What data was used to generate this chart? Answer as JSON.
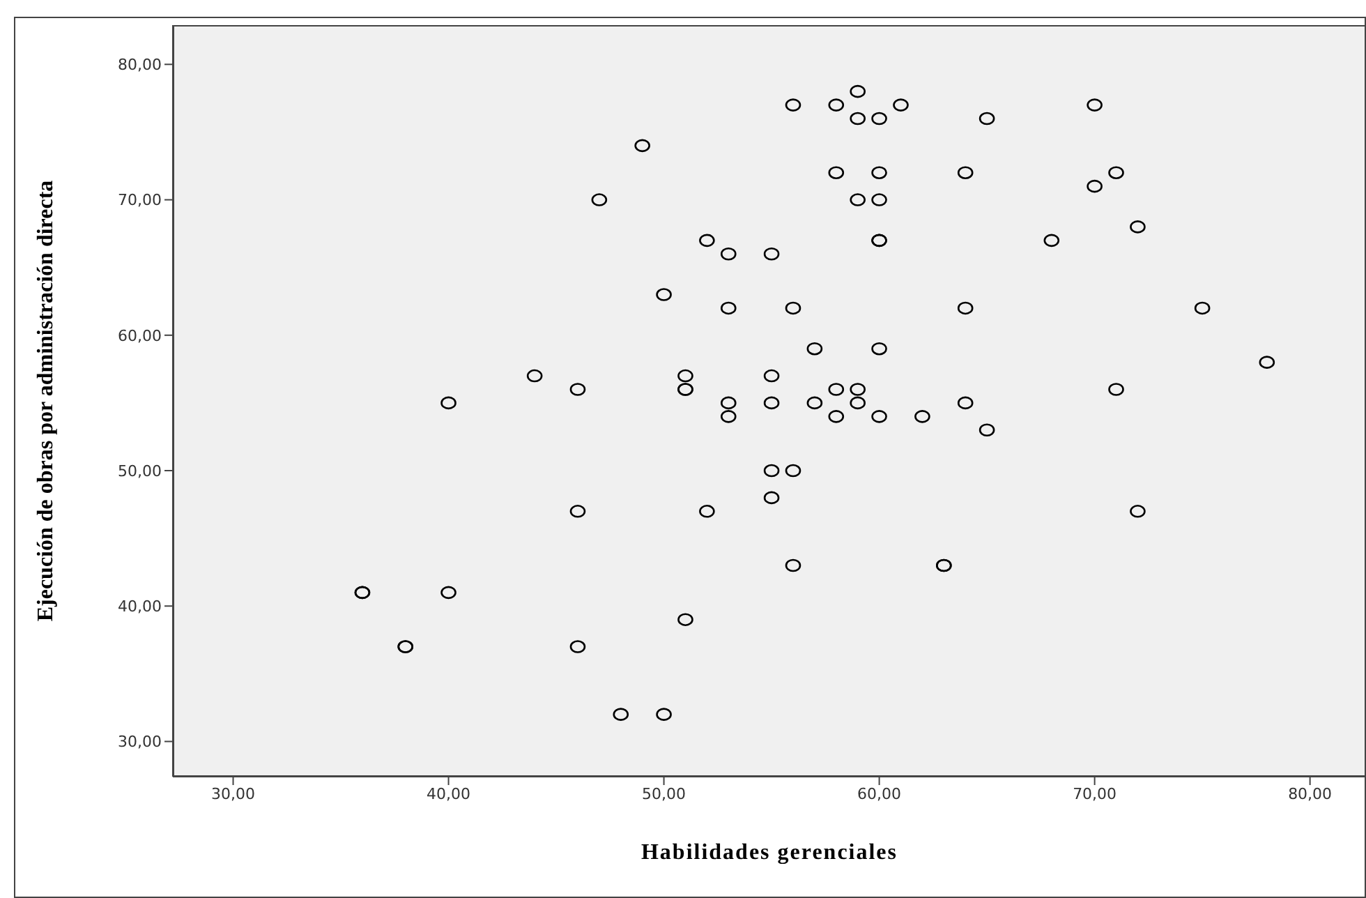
{
  "chart_data": {
    "type": "scatter",
    "xlabel": "Habilidades gerenciales",
    "ylabel": "Ejecución de obras por administración directa",
    "xlim": [
      27.2,
      82.6
    ],
    "ylim": [
      27.4,
      82.9
    ],
    "xticks": [
      {
        "value": 30,
        "label": "30,00"
      },
      {
        "value": 40,
        "label": "40,00"
      },
      {
        "value": 50,
        "label": "50,00"
      },
      {
        "value": 60,
        "label": "60,00"
      },
      {
        "value": 70,
        "label": "70,00"
      },
      {
        "value": 80,
        "label": "80,00"
      }
    ],
    "yticks": [
      {
        "value": 30,
        "label": "30,00"
      },
      {
        "value": 40,
        "label": "40,00"
      },
      {
        "value": 50,
        "label": "50,00"
      },
      {
        "value": 60,
        "label": "60,00"
      },
      {
        "value": 70,
        "label": "70,00"
      },
      {
        "value": 80,
        "label": "80,00"
      }
    ],
    "grid": false,
    "marker": "circle",
    "series": [
      {
        "color": "#000000",
        "x": [
          59,
          56,
          58,
          61,
          70,
          59,
          60,
          65,
          49,
          58,
          60,
          64,
          71,
          70,
          47,
          59,
          60,
          72,
          52,
          60,
          60,
          68,
          53,
          55,
          50,
          53,
          56,
          64,
          75,
          57,
          60,
          78,
          44,
          51,
          55,
          46,
          51,
          51,
          58,
          59,
          71,
          40,
          53,
          55,
          57,
          59,
          64,
          53,
          58,
          60,
          62,
          65,
          55,
          56,
          55,
          46,
          52,
          72,
          56,
          63,
          63,
          36,
          36,
          40,
          51,
          38,
          38,
          46,
          48,
          50
        ],
        "values": [
          78,
          77,
          77,
          77,
          77,
          76,
          76,
          76,
          74,
          72,
          72,
          72,
          72,
          71,
          70,
          70,
          70,
          68,
          67,
          67,
          67,
          67,
          66,
          66,
          63,
          62,
          62,
          62,
          62,
          59,
          59,
          58,
          57,
          57,
          57,
          56,
          56,
          56,
          56,
          56,
          56,
          55,
          55,
          55,
          55,
          55,
          55,
          54,
          54,
          54,
          54,
          53,
          50,
          50,
          48,
          47,
          47,
          47,
          43,
          43,
          43,
          41,
          41,
          41,
          39,
          37,
          37,
          37,
          32,
          32
        ]
      }
    ]
  }
}
